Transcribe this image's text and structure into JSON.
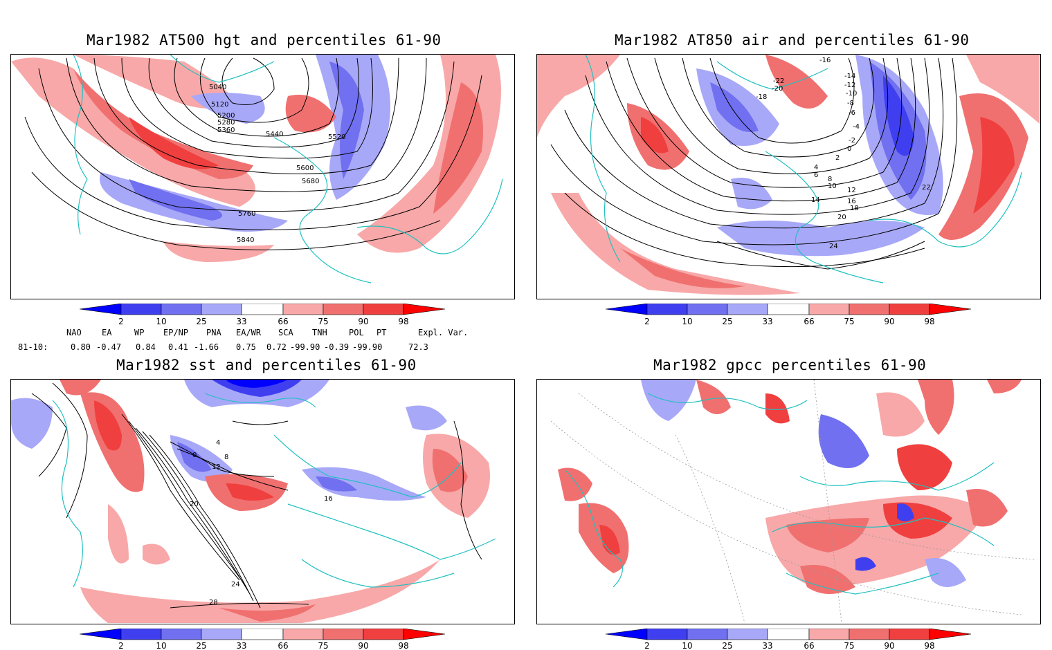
{
  "panels": [
    {
      "id": "p1",
      "title": "Mar1982 AT500 hgt and percentiles 61-90",
      "contour_labels": [
        "5040",
        "5120",
        "5200",
        "5280",
        "5360",
        "5440",
        "5520",
        "5600",
        "5680",
        "5760",
        "5840"
      ]
    },
    {
      "id": "p2",
      "title": "Mar1982 AT850 air and percentiles 61-90",
      "contour_labels": [
        "-16",
        "-14",
        "-12",
        "-10",
        "-8",
        "-6",
        "-4",
        "-2",
        "0",
        "2",
        "4",
        "6",
        "8",
        "10",
        "12",
        "14",
        "16",
        "18",
        "20",
        "22",
        "24",
        "-18",
        "-20",
        "-22"
      ]
    },
    {
      "id": "p3",
      "title": "Mar1982 sst and percentiles 61-90",
      "contour_labels": [
        "0",
        "4",
        "8",
        "12",
        "16",
        "20",
        "24",
        "28"
      ]
    },
    {
      "id": "p4",
      "title": "Mar1982 gpcc percentiles 61-90",
      "contour_labels": []
    }
  ],
  "colorbar": {
    "ticks": [
      "2",
      "10",
      "25",
      "33",
      "66",
      "75",
      "90",
      "98"
    ],
    "colors": {
      "below2": "#0000ff",
      "c2_10": "#3f3ff0",
      "c10_25": "#7070f0",
      "c25_33": "#a8a8f8",
      "c33_66": "#ffffff",
      "c66_75": "#f8a8a8",
      "c75_90": "#f07070",
      "c90_98": "#f03f3f",
      "above98": "#ff0000"
    }
  },
  "teleconnections": {
    "headers": [
      "NAO",
      "EA",
      "WP",
      "EP/NP",
      "PNA",
      "EA/WR",
      "SCA",
      "TNH",
      "POL",
      "PT",
      "Expl. Var."
    ],
    "row_label": "81-10:",
    "values": [
      "0.80",
      "-0.47",
      "0.84",
      "0.41",
      "-1.66",
      "0.75",
      "0.72",
      "-99.90",
      "-0.39",
      "-99.90",
      "72.3"
    ]
  },
  "style": {
    "coast_color": "#20c0c0",
    "contour_color": "#000000",
    "grid_color": "#999999"
  }
}
